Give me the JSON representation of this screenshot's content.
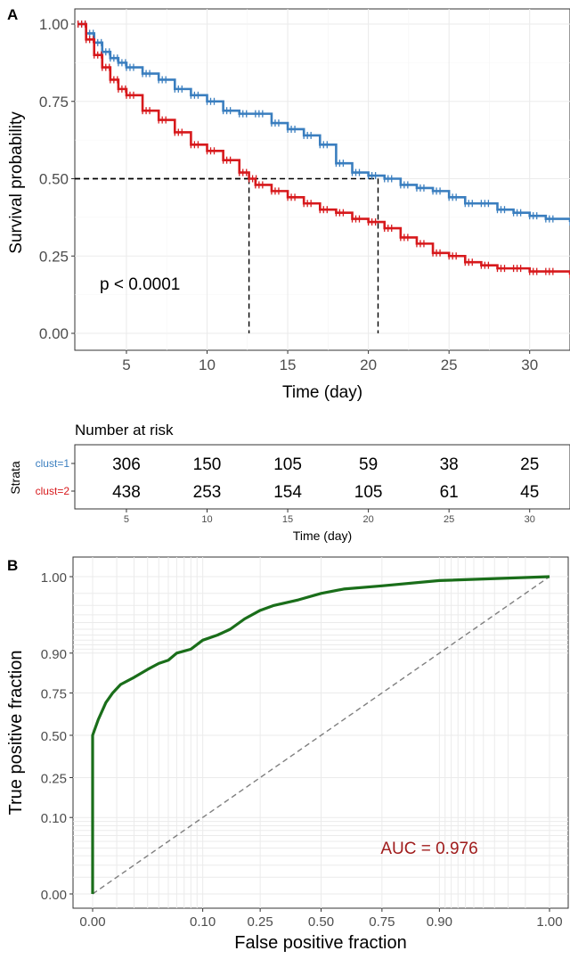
{
  "panels": {
    "a": "A",
    "b": "B"
  },
  "chart_data": [
    {
      "type": "line",
      "subtype": "kaplan-meier",
      "xlabel": "Time (day)",
      "ylabel": "Survival probability",
      "xlim": [
        1.8,
        32.5
      ],
      "ylim": [
        0,
        1
      ],
      "xticks": [
        5,
        10,
        15,
        20,
        25,
        30
      ],
      "yticks": [
        0,
        0.25,
        0.5,
        0.75,
        1
      ],
      "ytick_labels": [
        "0.00",
        "0.25",
        "0.50",
        "0.75",
        "1.00"
      ],
      "grid": true,
      "series": [
        {
          "name": "clust=1",
          "color": "#3a7ebf",
          "x": [
            2,
            2.5,
            3,
            3.5,
            4,
            4.5,
            5,
            6,
            7,
            8,
            9,
            10,
            11,
            12,
            13,
            14,
            15,
            16,
            17,
            18,
            19,
            20,
            21,
            22,
            23,
            24,
            25,
            26,
            27,
            28,
            29,
            30,
            31,
            32.5
          ],
          "y": [
            1.0,
            0.97,
            0.94,
            0.91,
            0.89,
            0.875,
            0.86,
            0.84,
            0.82,
            0.79,
            0.77,
            0.75,
            0.72,
            0.71,
            0.71,
            0.68,
            0.66,
            0.64,
            0.61,
            0.55,
            0.52,
            0.51,
            0.5,
            0.48,
            0.47,
            0.46,
            0.44,
            0.42,
            0.42,
            0.4,
            0.39,
            0.38,
            0.37,
            0.36
          ]
        },
        {
          "name": "clust=2",
          "color": "#d7191c",
          "x": [
            2,
            2.5,
            3,
            3.5,
            4,
            4.5,
            5,
            6,
            7,
            8,
            9,
            10,
            11,
            12,
            12.6,
            13,
            14,
            15,
            16,
            17,
            18,
            19,
            20,
            21,
            22,
            23,
            24,
            25,
            26,
            27,
            28,
            29,
            30,
            31,
            32.5
          ],
          "y": [
            1.0,
            0.95,
            0.9,
            0.86,
            0.82,
            0.79,
            0.77,
            0.72,
            0.69,
            0.65,
            0.61,
            0.59,
            0.56,
            0.52,
            0.5,
            0.48,
            0.46,
            0.44,
            0.42,
            0.4,
            0.39,
            0.37,
            0.36,
            0.34,
            0.31,
            0.29,
            0.26,
            0.25,
            0.23,
            0.22,
            0.21,
            0.21,
            0.2,
            0.2,
            0.19
          ]
        }
      ],
      "median_lines": [
        {
          "series": "clust=2",
          "x": 12.6,
          "y": 0.5
        },
        {
          "series": "clust=1",
          "x": 20.6,
          "y": 0.5
        }
      ],
      "annotations": [
        {
          "text": "p < 0.0001",
          "x": 3.5,
          "y": 0.2
        }
      ]
    },
    {
      "type": "table",
      "title": "Number at risk",
      "xlabel": "Time (day)",
      "ylabel": "Strata",
      "xticks": [
        5,
        10,
        15,
        20,
        25,
        30
      ],
      "rows": [
        {
          "name": "clust=1",
          "color": "#3a7ebf",
          "values": [
            306,
            150,
            105,
            59,
            38,
            25
          ]
        },
        {
          "name": "clust=2",
          "color": "#d7191c",
          "values": [
            438,
            253,
            154,
            105,
            61,
            45
          ]
        }
      ]
    },
    {
      "type": "line",
      "subtype": "roc",
      "xlabel": "False positive fraction",
      "ylabel": "True positive fraction",
      "xlim": [
        0,
        1
      ],
      "ylim": [
        0,
        1
      ],
      "xticks": [
        0,
        0.1,
        0.25,
        0.5,
        0.75,
        0.9,
        1
      ],
      "xtick_labels": [
        "0.00",
        "0.10",
        "0.25",
        "0.50",
        "0.75",
        "0.90",
        "1.00"
      ],
      "yticks": [
        0,
        0.1,
        0.25,
        0.5,
        0.75,
        0.9,
        1
      ],
      "ytick_labels": [
        "0.00",
        "0.10",
        "0.25",
        "0.50",
        "0.75",
        "0.90",
        "1.00"
      ],
      "grid": true,
      "scale": "probit-like (expanded near 0 and 1)",
      "series": [
        {
          "name": "",
          "color": "#1a6e1a",
          "x": [
            0,
            0,
            0.002,
            0.005,
            0.008,
            0.012,
            0.02,
            0.03,
            0.04,
            0.05,
            0.06,
            0.08,
            0.1,
            0.13,
            0.16,
            0.2,
            0.25,
            0.3,
            0.4,
            0.5,
            0.6,
            0.75,
            0.9,
            1.0
          ],
          "y": [
            0,
            0.5,
            0.6,
            0.7,
            0.75,
            0.79,
            0.82,
            0.85,
            0.87,
            0.88,
            0.9,
            0.91,
            0.93,
            0.94,
            0.95,
            0.965,
            0.975,
            0.98,
            0.985,
            0.99,
            0.993,
            0.995,
            0.998,
            1.0
          ]
        }
      ],
      "reference_line": {
        "from": [
          0,
          0
        ],
        "to": [
          1,
          1
        ],
        "color": "#7f7f7f"
      },
      "annotations": [
        {
          "text": "AUC = 0.976",
          "color": "#a01c1c"
        }
      ]
    }
  ]
}
